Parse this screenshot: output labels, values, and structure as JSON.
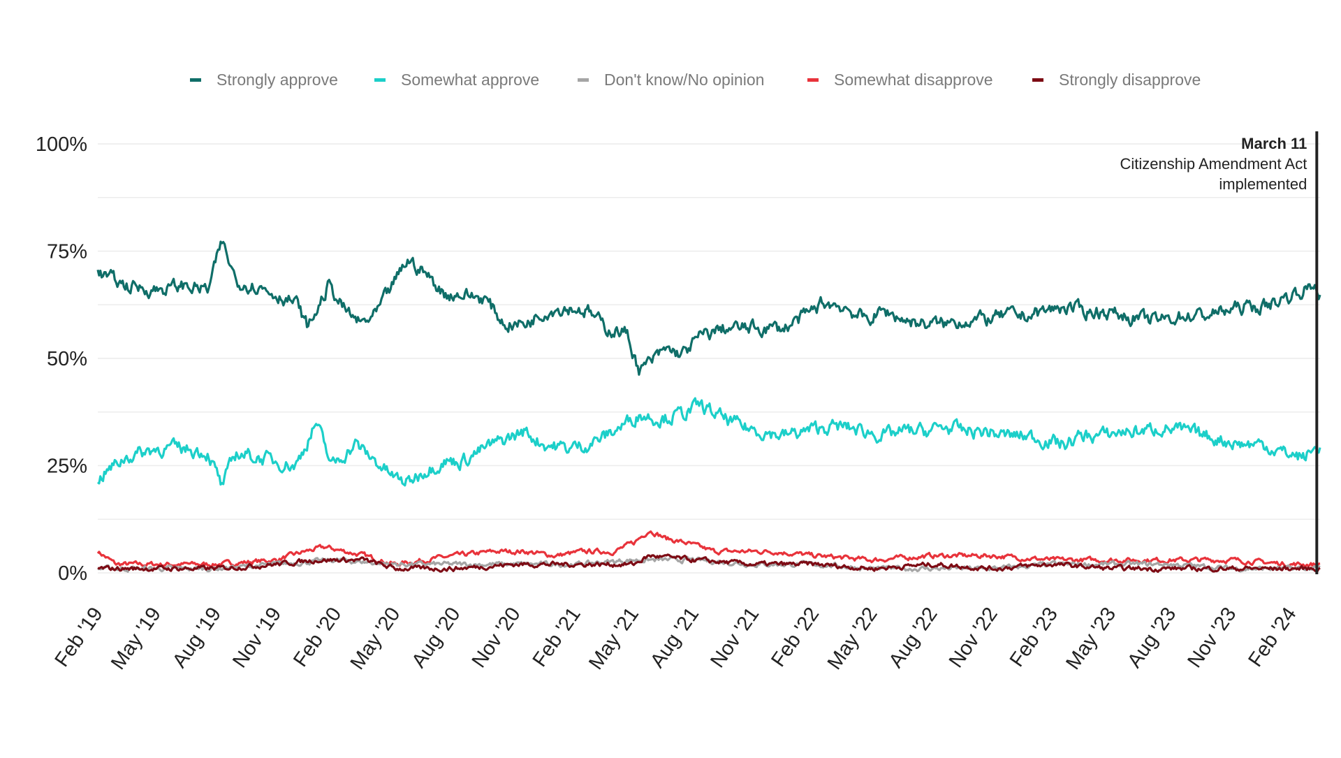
{
  "chart_data": {
    "type": "line",
    "title": "",
    "xlabel": "",
    "ylabel": "",
    "x_range": [
      "2019-02-01",
      "2024-03-16"
    ],
    "ylim": [
      0,
      100
    ],
    "y_ticks": [
      {
        "value": 0,
        "label": "0%"
      },
      {
        "value": 25,
        "label": "25%"
      },
      {
        "value": 50,
        "label": "50%"
      },
      {
        "value": 75,
        "label": "75%"
      },
      {
        "value": 100,
        "label": "100%"
      }
    ],
    "x_ticks": [
      {
        "date": "2019-02-01",
        "label": "Feb '19"
      },
      {
        "date": "2019-05-01",
        "label": "May '19"
      },
      {
        "date": "2019-08-01",
        "label": "Aug '19"
      },
      {
        "date": "2019-11-01",
        "label": "Nov '19"
      },
      {
        "date": "2020-02-01",
        "label": "Feb '20"
      },
      {
        "date": "2020-05-01",
        "label": "May '20"
      },
      {
        "date": "2020-08-01",
        "label": "Aug '20"
      },
      {
        "date": "2020-11-01",
        "label": "Nov '20"
      },
      {
        "date": "2021-02-01",
        "label": "Feb '21"
      },
      {
        "date": "2021-05-01",
        "label": "May '21"
      },
      {
        "date": "2021-08-01",
        "label": "Aug '21"
      },
      {
        "date": "2021-11-01",
        "label": "Nov '21"
      },
      {
        "date": "2022-02-01",
        "label": "Feb '22"
      },
      {
        "date": "2022-05-01",
        "label": "May '22"
      },
      {
        "date": "2022-08-01",
        "label": "Aug '22"
      },
      {
        "date": "2022-11-01",
        "label": "Nov '22"
      },
      {
        "date": "2023-02-01",
        "label": "Feb '23"
      },
      {
        "date": "2023-05-01",
        "label": "May '23"
      },
      {
        "date": "2023-08-01",
        "label": "Aug '23"
      },
      {
        "date": "2023-11-01",
        "label": "Nov '23"
      },
      {
        "date": "2024-02-01",
        "label": "Feb '24"
      }
    ],
    "grid": true,
    "legend_position": "top",
    "series": [
      {
        "name": "Strongly approve",
        "color": "#0f6e68",
        "x": [
          "2019-02-01",
          "2019-03-15",
          "2019-05-01",
          "2019-06-15",
          "2019-07-20",
          "2019-08-10",
          "2019-09-01",
          "2019-10-01",
          "2019-11-01",
          "2019-12-01",
          "2019-12-20",
          "2020-01-20",
          "2020-02-15",
          "2020-03-10",
          "2020-04-01",
          "2020-05-01",
          "2020-05-20",
          "2020-06-15",
          "2020-07-15",
          "2020-08-10",
          "2020-09-15",
          "2020-10-15",
          "2020-11-15",
          "2020-12-15",
          "2021-01-20",
          "2021-02-20",
          "2021-03-20",
          "2021-04-20",
          "2021-05-10",
          "2021-05-25",
          "2021-06-20",
          "2021-07-15",
          "2021-08-10",
          "2021-09-15",
          "2021-10-15",
          "2021-11-15",
          "2021-12-15",
          "2022-01-20",
          "2022-02-15",
          "2022-03-20",
          "2022-04-20",
          "2022-05-20",
          "2022-06-20",
          "2022-07-20",
          "2022-08-20",
          "2022-09-20",
          "2022-10-20",
          "2022-11-20",
          "2022-12-20",
          "2023-01-20",
          "2023-02-20",
          "2023-03-20",
          "2023-04-20",
          "2023-05-20",
          "2023-06-20",
          "2023-07-20",
          "2023-08-20",
          "2023-09-20",
          "2023-10-20",
          "2023-11-20",
          "2023-12-20",
          "2024-01-20",
          "2024-02-20",
          "2024-03-11",
          "2024-03-16"
        ],
        "y": [
          70,
          67,
          66,
          67,
          66,
          77,
          68,
          67,
          65,
          63,
          57,
          67,
          61,
          58,
          60,
          68,
          73,
          70,
          65,
          65,
          64,
          58,
          58,
          61,
          62,
          61,
          57,
          56,
          47,
          49,
          52,
          51,
          55,
          57,
          57,
          57,
          57,
          60,
          63,
          62,
          59,
          61,
          59,
          58,
          58,
          59,
          59,
          60,
          60,
          61,
          62,
          61,
          61,
          60,
          59,
          59,
          60,
          60,
          61,
          62,
          62,
          64,
          66,
          67,
          65
        ]
      },
      {
        "name": "Somewhat approve",
        "color": "#1ccfc9",
        "x": [
          "2019-02-01",
          "2019-03-15",
          "2019-05-01",
          "2019-06-15",
          "2019-07-20",
          "2019-08-10",
          "2019-09-01",
          "2019-10-01",
          "2019-11-01",
          "2019-12-01",
          "2020-01-01",
          "2020-01-25",
          "2020-03-01",
          "2020-04-01",
          "2020-05-01",
          "2020-05-20",
          "2020-06-15",
          "2020-07-15",
          "2020-08-10",
          "2020-09-15",
          "2020-10-15",
          "2020-11-15",
          "2020-12-15",
          "2021-01-20",
          "2021-02-20",
          "2021-03-20",
          "2021-04-20",
          "2021-05-10",
          "2021-06-10",
          "2021-07-15",
          "2021-08-10",
          "2021-09-15",
          "2021-10-15",
          "2021-11-15",
          "2021-12-15",
          "2022-01-20",
          "2022-02-15",
          "2022-03-20",
          "2022-04-20",
          "2022-05-20",
          "2022-06-20",
          "2022-07-20",
          "2022-08-20",
          "2022-09-20",
          "2022-10-20",
          "2022-11-20",
          "2022-12-20",
          "2023-01-20",
          "2023-02-20",
          "2023-03-20",
          "2023-04-20",
          "2023-05-20",
          "2023-06-20",
          "2023-07-20",
          "2023-08-20",
          "2023-09-20",
          "2023-10-20",
          "2023-11-20",
          "2023-12-20",
          "2024-01-20",
          "2024-02-20",
          "2024-03-11",
          "2024-03-16"
        ],
        "y": [
          22,
          27,
          29,
          29,
          28,
          20,
          28,
          27,
          26,
          25,
          35,
          25,
          30,
          26,
          22,
          21,
          24,
          26,
          26,
          29,
          31,
          33,
          30,
          29,
          30,
          32,
          35,
          37,
          36,
          37,
          39,
          36,
          34,
          33,
          32,
          33,
          34,
          34,
          33,
          32,
          33,
          33,
          34,
          33,
          33,
          32,
          32,
          31,
          30,
          32,
          32,
          33,
          33,
          34,
          33,
          32,
          31,
          30,
          30,
          28,
          27,
          29,
          30
        ]
      },
      {
        "name": "Don't know/No opinion",
        "color": "#a5a5a5",
        "x": [
          "2019-02-01",
          "2019-05-01",
          "2019-08-01",
          "2019-11-01",
          "2020-02-01",
          "2020-05-01",
          "2020-08-01",
          "2020-11-01",
          "2021-02-01",
          "2021-05-01",
          "2021-08-01",
          "2021-11-01",
          "2022-02-01",
          "2022-05-01",
          "2022-08-01",
          "2022-11-01",
          "2023-02-01",
          "2023-05-01",
          "2023-08-01",
          "2023-11-01",
          "2024-02-01",
          "2024-03-16"
        ],
        "y": [
          1,
          1,
          1,
          2,
          3,
          2,
          2,
          2,
          2,
          3,
          3,
          2,
          2,
          1,
          1,
          1,
          2,
          2,
          2,
          1,
          1,
          1
        ]
      },
      {
        "name": "Somewhat disapprove",
        "color": "#e8333b",
        "x": [
          "2019-02-01",
          "2019-03-01",
          "2019-05-01",
          "2019-08-01",
          "2019-11-01",
          "2019-12-15",
          "2020-01-15",
          "2020-02-15",
          "2020-03-15",
          "2020-05-01",
          "2020-06-15",
          "2020-08-01",
          "2020-10-01",
          "2020-11-15",
          "2021-01-01",
          "2021-02-15",
          "2021-04-01",
          "2021-05-01",
          "2021-05-25",
          "2021-06-20",
          "2021-07-20",
          "2021-09-01",
          "2021-10-15",
          "2021-12-01",
          "2022-02-01",
          "2022-05-01",
          "2022-08-01",
          "2022-11-01",
          "2023-02-01",
          "2023-05-01",
          "2023-08-01",
          "2023-11-01",
          "2024-02-01",
          "2024-03-16"
        ],
        "y": [
          5,
          2,
          2,
          2,
          3,
          5,
          6,
          5,
          4,
          2,
          3,
          4,
          5,
          5,
          4,
          5,
          5,
          7,
          10,
          8,
          7,
          5,
          5,
          5,
          4,
          3,
          4,
          4,
          3,
          3,
          3,
          3,
          2,
          2
        ]
      },
      {
        "name": "Strongly disapprove",
        "color": "#7d0b14",
        "x": [
          "2019-02-01",
          "2019-05-01",
          "2019-08-01",
          "2019-11-01",
          "2020-01-01",
          "2020-02-01",
          "2020-03-15",
          "2020-05-01",
          "2020-08-01",
          "2020-11-01",
          "2021-02-01",
          "2021-05-01",
          "2021-05-25",
          "2021-08-01",
          "2021-11-01",
          "2022-02-01",
          "2022-05-01",
          "2022-08-01",
          "2022-11-01",
          "2023-02-01",
          "2023-05-01",
          "2023-08-01",
          "2023-11-01",
          "2024-02-01",
          "2024-03-16"
        ],
        "y": [
          1,
          1,
          1,
          2,
          3,
          3,
          3,
          1,
          1,
          2,
          2,
          2,
          4,
          3,
          2,
          2,
          1,
          2,
          1,
          2,
          1,
          1,
          1,
          1,
          1
        ]
      }
    ],
    "annotation": {
      "date": "2024-03-11",
      "title": "March 11",
      "lines": [
        "Citizenship Amendment Act",
        "implemented"
      ]
    }
  }
}
